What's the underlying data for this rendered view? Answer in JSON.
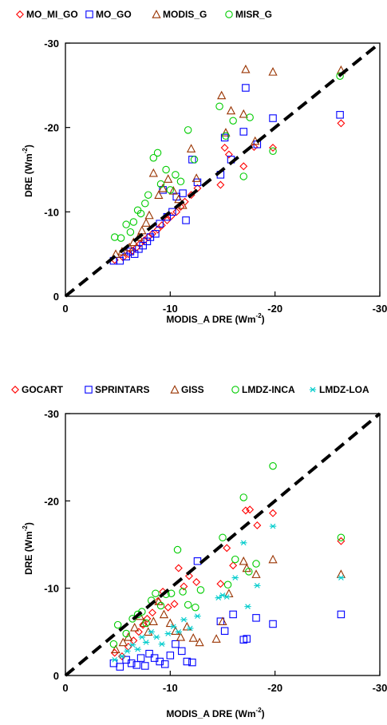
{
  "chart_data": [
    {
      "type": "scatter",
      "xlabel": "MODIS_A DRE (Wm",
      "xlabel_sup": "-2",
      "xlabel_close": ")",
      "ylabel": "DRE (Wm",
      "ylabel_sup": "-2",
      "ylabel_close": ")",
      "xlim": [
        0,
        -30
      ],
      "ylim": [
        0,
        -30
      ],
      "xticks": [
        0,
        -10,
        -20,
        -30
      ],
      "yticks": [
        0,
        -10,
        -20,
        -30
      ],
      "xtick_labels": [
        "0",
        "-10",
        "-20",
        "-30"
      ],
      "ytick_labels": [
        "0",
        "-10",
        "-20",
        "-30"
      ],
      "grid": false,
      "legend_position": "top",
      "one_to_one_line": true,
      "series": [
        {
          "name": "MO_MI_GO",
          "marker": "diamond",
          "color": "#ff0000",
          "points": [
            [
              -4.7,
              -4.3
            ],
            [
              -5.5,
              -4.6
            ],
            [
              -6.0,
              -5.0
            ],
            [
              -6.4,
              -5.4
            ],
            [
              -6.8,
              -5.8
            ],
            [
              -7.1,
              -6.2
            ],
            [
              -7.5,
              -6.6
            ],
            [
              -7.9,
              -7.0
            ],
            [
              -8.3,
              -7.4
            ],
            [
              -8.8,
              -7.9
            ],
            [
              -9.2,
              -8.4
            ],
            [
              -9.7,
              -9.0
            ],
            [
              -10.1,
              -9.5
            ],
            [
              -10.6,
              -10.0
            ],
            [
              -11.0,
              -10.6
            ],
            [
              -11.4,
              -11.2
            ],
            [
              -12.0,
              -12.0
            ],
            [
              -12.6,
              -12.8
            ],
            [
              -14.8,
              -13.2
            ],
            [
              -15.2,
              -17.6
            ],
            [
              -15.6,
              -16.8
            ],
            [
              -17.0,
              -15.4
            ],
            [
              -18.0,
              -17.7
            ],
            [
              -19.8,
              -17.6
            ],
            [
              -26.3,
              -20.5
            ]
          ]
        },
        {
          "name": "MO_GO",
          "marker": "square",
          "color": "#0000ff",
          "points": [
            [
              -4.6,
              -4.2
            ],
            [
              -5.2,
              -4.2
            ],
            [
              -5.8,
              -4.7
            ],
            [
              -6.2,
              -5.3
            ],
            [
              -6.6,
              -5.0
            ],
            [
              -7.0,
              -5.6
            ],
            [
              -7.4,
              -6.0
            ],
            [
              -7.8,
              -6.5
            ],
            [
              -8.1,
              -7.0
            ],
            [
              -8.6,
              -7.4
            ],
            [
              -9.0,
              -8.6
            ],
            [
              -9.3,
              -12.6
            ],
            [
              -9.7,
              -9.4
            ],
            [
              -10.2,
              -10.0
            ],
            [
              -10.6,
              -11.8
            ],
            [
              -11.2,
              -12.2
            ],
            [
              -11.5,
              -9.0
            ],
            [
              -12.1,
              -16.2
            ],
            [
              -12.6,
              -13.5
            ],
            [
              -14.8,
              -14.4
            ],
            [
              -15.2,
              -18.8
            ],
            [
              -15.8,
              -16.2
            ],
            [
              -17.0,
              -19.5
            ],
            [
              -17.2,
              -24.7
            ],
            [
              -18.3,
              -18.0
            ],
            [
              -19.8,
              -21.1
            ],
            [
              -26.2,
              -21.5
            ]
          ]
        },
        {
          "name": "MODIS_G",
          "marker": "triangle",
          "color": "#993300",
          "points": [
            [
              -4.8,
              -5.0
            ],
            [
              -5.4,
              -5.3
            ],
            [
              -6.1,
              -5.8
            ],
            [
              -6.5,
              -6.4
            ],
            [
              -7.0,
              -7.0
            ],
            [
              -7.3,
              -7.8
            ],
            [
              -7.7,
              -8.7
            ],
            [
              -8.0,
              -9.6
            ],
            [
              -8.4,
              -14.6
            ],
            [
              -8.9,
              -12.0
            ],
            [
              -9.3,
              -12.8
            ],
            [
              -9.8,
              -13.9
            ],
            [
              -10.3,
              -12.5
            ],
            [
              -10.8,
              -11.5
            ],
            [
              -11.2,
              -10.8
            ],
            [
              -12.0,
              -17.5
            ],
            [
              -12.5,
              -14.0
            ],
            [
              -14.9,
              -23.8
            ],
            [
              -15.3,
              -19.4
            ],
            [
              -15.8,
              -22.0
            ],
            [
              -17.0,
              -21.6
            ],
            [
              -17.2,
              -26.9
            ],
            [
              -18.1,
              -18.4
            ],
            [
              -19.8,
              -26.6
            ],
            [
              -26.3,
              -26.8
            ]
          ]
        },
        {
          "name": "MISR_G",
          "marker": "circle",
          "color": "#00cc00",
          "points": [
            [
              -4.7,
              -7.0
            ],
            [
              -5.3,
              -6.9
            ],
            [
              -5.8,
              -8.5
            ],
            [
              -6.2,
              -7.6
            ],
            [
              -6.5,
              -8.8
            ],
            [
              -6.9,
              -10.2
            ],
            [
              -7.2,
              -9.8
            ],
            [
              -7.6,
              -11.0
            ],
            [
              -7.9,
              -12.0
            ],
            [
              -8.4,
              -16.4
            ],
            [
              -8.8,
              -17.0
            ],
            [
              -9.1,
              -13.3
            ],
            [
              -9.6,
              -15.0
            ],
            [
              -10.0,
              -12.6
            ],
            [
              -10.5,
              -14.4
            ],
            [
              -11.0,
              -13.6
            ],
            [
              -11.7,
              -19.7
            ],
            [
              -12.3,
              -16.2
            ],
            [
              -14.7,
              -22.5
            ],
            [
              -15.3,
              -19.0
            ],
            [
              -16.0,
              -20.8
            ],
            [
              -17.0,
              -14.2
            ],
            [
              -17.6,
              -21.2
            ],
            [
              -19.8,
              -17.2
            ],
            [
              -26.2,
              -26.1
            ]
          ]
        }
      ]
    },
    {
      "type": "scatter",
      "xlabel": "MODIS_A DRE (Wm",
      "xlabel_sup": "-2",
      "xlabel_close": ")",
      "ylabel": "DRE (Wm",
      "ylabel_sup": "-2",
      "ylabel_close": ")",
      "xlim": [
        0,
        -30
      ],
      "ylim": [
        0,
        -30
      ],
      "xticks": [
        0,
        -10,
        -20,
        -30
      ],
      "yticks": [
        0,
        -10,
        -20,
        -30
      ],
      "xtick_labels": [
        "0",
        "-10",
        "-20",
        "-30"
      ],
      "ytick_labels": [
        "0",
        "-10",
        "-20",
        "-30"
      ],
      "grid": false,
      "legend_position": "top",
      "one_to_one_line": true,
      "series": [
        {
          "name": "GOCART",
          "marker": "diamond",
          "color": "#ff0000",
          "points": [
            [
              -4.7,
              -2.6
            ],
            [
              -5.4,
              -2.2
            ],
            [
              -6.0,
              -3.3
            ],
            [
              -6.5,
              -4.0
            ],
            [
              -7.0,
              -5.0
            ],
            [
              -7.4,
              -5.8
            ],
            [
              -7.8,
              -6.5
            ],
            [
              -8.3,
              -7.2
            ],
            [
              -8.8,
              -8.5
            ],
            [
              -9.3,
              -9.6
            ],
            [
              -9.8,
              -7.8
            ],
            [
              -10.4,
              -8.2
            ],
            [
              -10.8,
              -12.3
            ],
            [
              -11.3,
              -10.2
            ],
            [
              -11.8,
              -11.4
            ],
            [
              -12.5,
              -10.7
            ],
            [
              -14.8,
              -10.5
            ],
            [
              -15.4,
              -14.6
            ],
            [
              -16.0,
              -12.6
            ],
            [
              -17.2,
              -18.9
            ],
            [
              -17.6,
              -19.0
            ],
            [
              -18.3,
              -17.2
            ],
            [
              -19.8,
              -18.6
            ],
            [
              -26.3,
              -15.4
            ]
          ]
        },
        {
          "name": "SPRINTARS",
          "marker": "square",
          "color": "#0000ff",
          "points": [
            [
              -4.6,
              -1.4
            ],
            [
              -5.2,
              -1.0
            ],
            [
              -5.8,
              -1.8
            ],
            [
              -6.3,
              -1.4
            ],
            [
              -6.8,
              -1.2
            ],
            [
              -7.2,
              -2.0
            ],
            [
              -7.6,
              -1.1
            ],
            [
              -8.0,
              -2.5
            ],
            [
              -8.5,
              -2.0
            ],
            [
              -9.0,
              -1.6
            ],
            [
              -9.5,
              -1.3
            ],
            [
              -10.0,
              -2.3
            ],
            [
              -10.5,
              -3.6
            ],
            [
              -11.1,
              -2.8
            ],
            [
              -11.6,
              -1.6
            ],
            [
              -12.1,
              -1.5
            ],
            [
              -12.6,
              -13.1
            ],
            [
              -14.8,
              -6.2
            ],
            [
              -15.2,
              -5.1
            ],
            [
              -16.0,
              -7.0
            ],
            [
              -17.0,
              -4.1
            ],
            [
              -17.3,
              -4.2
            ],
            [
              -18.2,
              -6.6
            ],
            [
              -19.8,
              -5.9
            ],
            [
              -26.3,
              -7.0
            ]
          ]
        },
        {
          "name": "GISS",
          "marker": "triangle",
          "color": "#993300",
          "points": [
            [
              -4.8,
              -3.0
            ],
            [
              -5.5,
              -3.8
            ],
            [
              -6.0,
              -4.4
            ],
            [
              -6.6,
              -5.5
            ],
            [
              -7.1,
              -6.8
            ],
            [
              -7.5,
              -6.0
            ],
            [
              -7.9,
              -5.0
            ],
            [
              -8.4,
              -6.2
            ],
            [
              -8.9,
              -8.5
            ],
            [
              -9.4,
              -7.0
            ],
            [
              -10.0,
              -6.0
            ],
            [
              -10.5,
              -5.1
            ],
            [
              -11.0,
              -4.4
            ],
            [
              -11.6,
              -5.6
            ],
            [
              -12.2,
              -4.3
            ],
            [
              -12.8,
              -3.8
            ],
            [
              -14.4,
              -4.2
            ],
            [
              -15.0,
              -6.2
            ],
            [
              -15.6,
              -9.4
            ],
            [
              -17.0,
              -13.1
            ],
            [
              -17.3,
              -12.3
            ],
            [
              -18.2,
              -11.6
            ],
            [
              -19.8,
              -13.3
            ],
            [
              -26.3,
              -11.6
            ]
          ]
        },
        {
          "name": "LMDZ-INCA",
          "marker": "circle",
          "color": "#00cc00",
          "points": [
            [
              -4.6,
              -3.6
            ],
            [
              -5.0,
              -5.8
            ],
            [
              -5.8,
              -4.8
            ],
            [
              -6.4,
              -6.5
            ],
            [
              -6.9,
              -7.0
            ],
            [
              -7.3,
              -7.3
            ],
            [
              -7.7,
              -6.0
            ],
            [
              -8.2,
              -8.6
            ],
            [
              -8.6,
              -9.4
            ],
            [
              -9.1,
              -8.0
            ],
            [
              -9.6,
              -9.3
            ],
            [
              -10.1,
              -9.4
            ],
            [
              -10.7,
              -14.4
            ],
            [
              -11.2,
              -9.6
            ],
            [
              -11.7,
              -8.1
            ],
            [
              -12.4,
              -7.8
            ],
            [
              -12.9,
              -9.8
            ],
            [
              -15.0,
              -15.8
            ],
            [
              -15.5,
              -10.4
            ],
            [
              -16.2,
              -13.3
            ],
            [
              -17.0,
              -20.4
            ],
            [
              -17.5,
              -11.9
            ],
            [
              -18.2,
              -12.8
            ],
            [
              -19.8,
              -24.0
            ],
            [
              -26.3,
              -15.8
            ]
          ]
        },
        {
          "name": "LMDZ-LOA",
          "marker": "asterisk",
          "color": "#00cccc",
          "points": [
            [
              -4.7,
              -1.8
            ],
            [
              -5.4,
              -2.2
            ],
            [
              -5.9,
              -2.8
            ],
            [
              -6.4,
              -3.5
            ],
            [
              -6.9,
              -3.0
            ],
            [
              -7.3,
              -4.4
            ],
            [
              -7.7,
              -3.8
            ],
            [
              -8.2,
              -5.0
            ],
            [
              -8.7,
              -4.4
            ],
            [
              -9.2,
              -3.6
            ],
            [
              -9.8,
              -4.8
            ],
            [
              -10.3,
              -5.6
            ],
            [
              -10.8,
              -5.0
            ],
            [
              -11.3,
              -6.4
            ],
            [
              -11.9,
              -5.4
            ],
            [
              -12.6,
              -6.8
            ],
            [
              -14.6,
              -8.9
            ],
            [
              -15.0,
              -9.2
            ],
            [
              -15.4,
              -9.0
            ],
            [
              -16.2,
              -11.2
            ],
            [
              -17.0,
              -15.2
            ],
            [
              -17.4,
              -7.9
            ],
            [
              -18.3,
              -10.3
            ],
            [
              -19.8,
              -17.1
            ],
            [
              -26.3,
              -11.2
            ]
          ]
        }
      ]
    }
  ]
}
